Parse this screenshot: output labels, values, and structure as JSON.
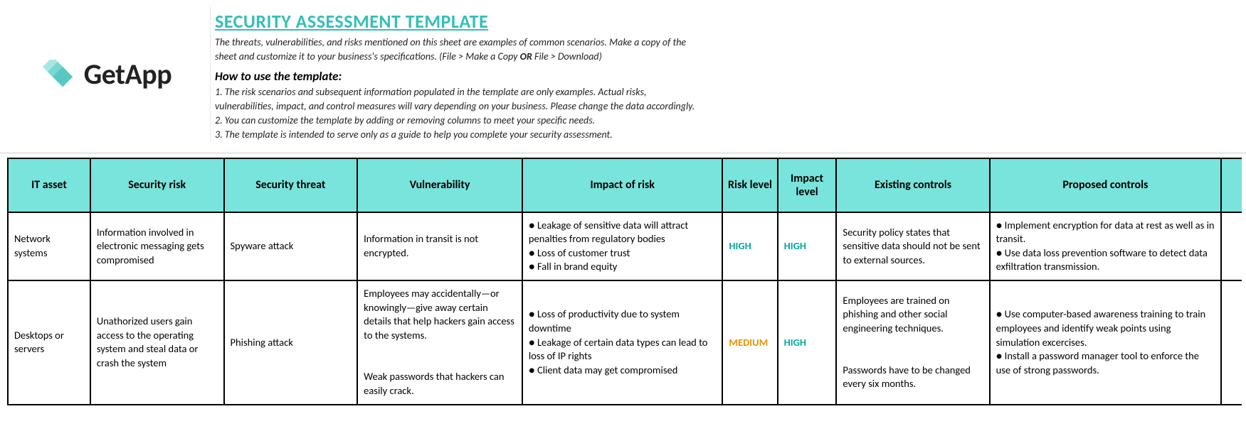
{
  "brand": {
    "name": "GetApp",
    "accent_color": "#57c9c1",
    "accent_color_light": "#a5e8e2",
    "text_color": "#222222"
  },
  "header": {
    "title": "SECURITY ASSESSMENT TEMPLATE",
    "title_color": "#33bfb8",
    "subtitle_line1": "The threats, vulnerabilities, and risks mentioned on this sheet are examples of common scenarios. Make a copy of the",
    "subtitle_line2_pre": "sheet and customize it to your business's specifications. (File > Make a Copy ",
    "subtitle_line2_bold": "OR",
    "subtitle_line2_post": " File > Download)",
    "howto_heading": "How to use the template:",
    "howto_1": "1. The risk scenarios and subsequent information populated in the template are only examples. Actual risks,",
    "howto_1b": "vulnerabilities, impact, and control measures will vary depending on your business. Please change the data accordingly.",
    "howto_2": "2.  You can customize the template by adding or removing columns to meet your specific needs.",
    "howto_3": "3. The template is intended to serve only as a guide to help you complete your security assessment."
  },
  "table": {
    "header_bg": "#79e4dc",
    "border_color": "#000000",
    "level_colors": {
      "HIGH": "#00a9a0",
      "MEDIUM": "#e59400"
    },
    "columns": {
      "it_asset": "IT asset",
      "security_risk": "Security risk",
      "security_threat": "Security threat",
      "vulnerability": "Vulnerability",
      "impact_of_risk": "Impact of risk",
      "risk_level": "Risk level",
      "impact_level": "Impact level",
      "existing_controls": "Existing controls",
      "proposed_controls": "Proposed controls"
    },
    "rows": [
      {
        "it_asset": "Network systems",
        "security_risk": "Information involved in electronic messaging gets compromised",
        "security_threat": "Spyware attack",
        "vulnerability": "Information in transit is not encrypted.",
        "impact_of_risk": "● Leakage of sensitive data will attract penalties from regulatory bodies\n● Loss of customer trust\n● Fall in brand equity",
        "risk_level": "HIGH",
        "impact_level": "HIGH",
        "existing_controls": "Security policy states that sensitive data should not be sent to external sources.",
        "proposed_controls": "● Implement encryption for data at rest as well as in transit.\n● Use data loss prevention software to detect data exfiltration transmission."
      },
      {
        "it_asset": "Desktops or servers",
        "security_risk": "Unathorized users gain access to the operating system and steal data or crash the system",
        "security_threat": "Phishing attack",
        "vulnerability": "Employees may accidentally—or knowingly—give away certain details that help hackers gain access to the systems.\n\nWeak passwords that hackers can easily crack.",
        "impact_of_risk": "● Loss of productivity due to system downtime\n● Leakage of certain data types can lead to loss of IP rights\n● Client data may get compromised",
        "risk_level": "MEDIUM",
        "impact_level": "HIGH",
        "existing_controls": "Employees are trained on phishing and other social engineering techniques.\n\nPasswords have to be changed every six months.",
        "proposed_controls": "● Use computer-based awareness training to train employees and identify weak points using simulation excercises.\n● Install a password manager tool to enforce the use of strong passwords."
      }
    ]
  }
}
